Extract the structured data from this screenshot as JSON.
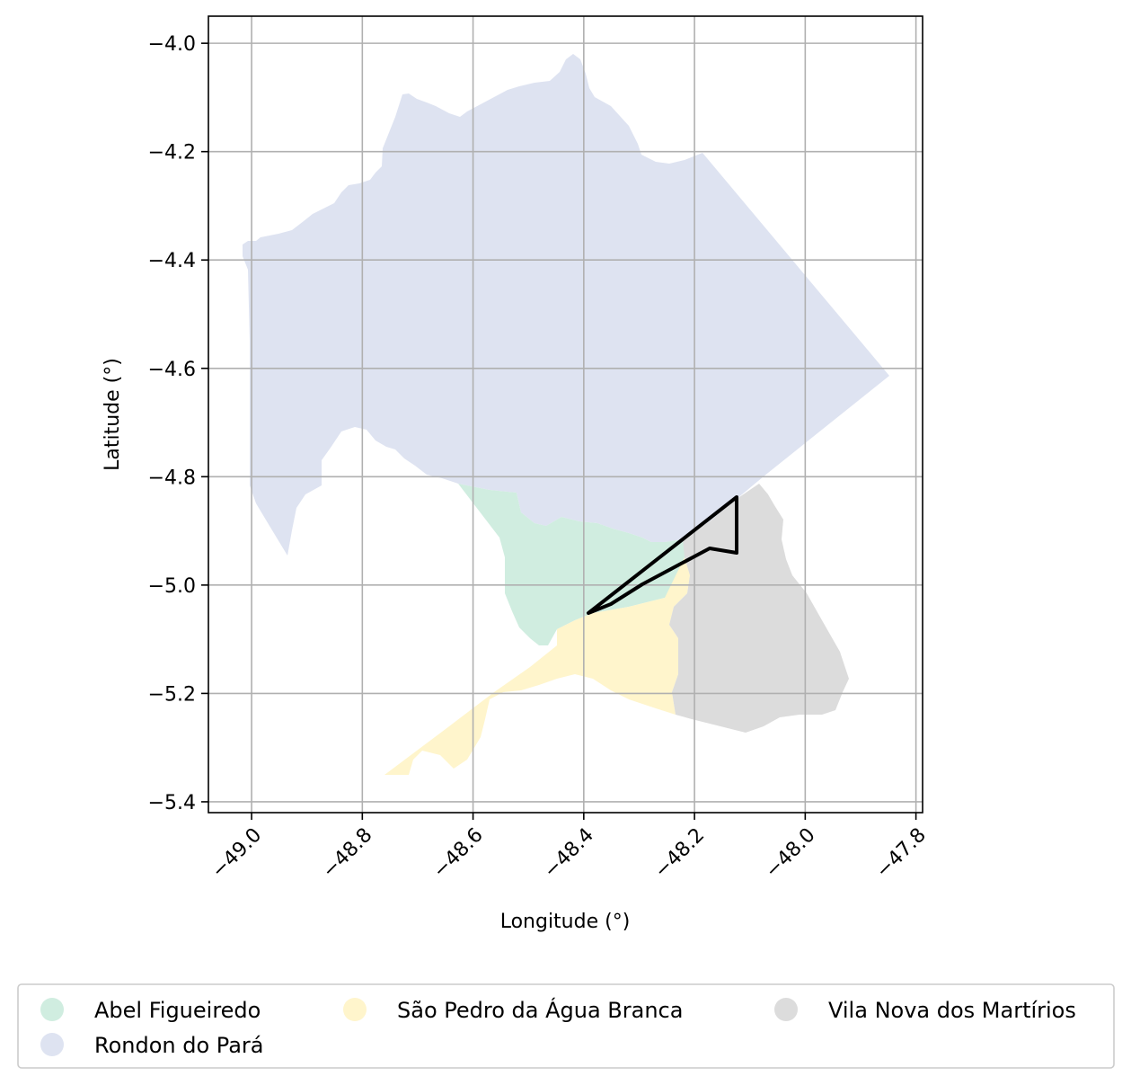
{
  "map": {
    "xlabel": "Longitude (°)",
    "ylabel": "Latitude (°)",
    "x_ticks": [
      -49.0,
      -48.8,
      -48.6,
      -48.4,
      -48.2,
      -48.0,
      -47.8
    ],
    "x_tick_labels": [
      "−49.0",
      "−48.8",
      "−48.6",
      "−48.4",
      "−48.2",
      "−48.0",
      "−47.8"
    ],
    "y_ticks": [
      -4.0,
      -4.2,
      -4.4,
      -4.6,
      -4.8,
      -5.0,
      -5.2,
      -5.4
    ],
    "y_tick_labels": [
      "−4.0",
      "−4.2",
      "−4.4",
      "−4.6",
      "−4.8",
      "−5.0",
      "−5.2",
      "−5.4"
    ],
    "xlim": [
      -49.078,
      -47.788
    ],
    "ylim": [
      -5.42,
      -3.95
    ],
    "grid": true,
    "legend_position": "bottom"
  },
  "legend": {
    "items": [
      {
        "label": "Abel Figueiredo",
        "color": "#d0ede0"
      },
      {
        "label": "São Pedro da Água Branca",
        "color": "#fff5cc"
      },
      {
        "label": "Vila Nova dos Martírios",
        "color": "#dcdcdc"
      },
      {
        "label": "Rondon do Pará",
        "color": "#dee3f1"
      }
    ]
  },
  "colors": {
    "abel": "#d0ede0",
    "rondon": "#dee3f1",
    "sao_pedro": "#fff5cc",
    "vila_nova": "#dcdcdc",
    "outline": "#000000",
    "grid": "#b0b0b0"
  }
}
